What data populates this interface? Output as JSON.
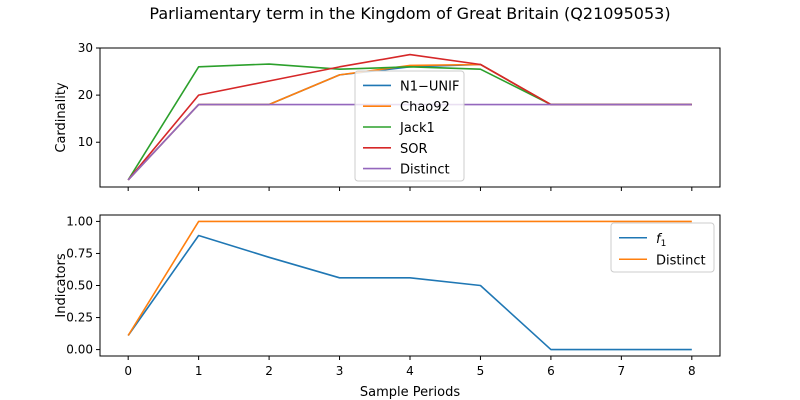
{
  "figure": {
    "title": "Parliamentary term in the Kingdom of Great Britain (Q21095053)"
  },
  "chart_data": [
    {
      "type": "line",
      "ylabel": "Cardinality",
      "xlabel": "",
      "xlim": [
        -0.4,
        8.4
      ],
      "ylim": [
        0.5,
        30
      ],
      "yticks": [
        10,
        20,
        30
      ],
      "xticks": [
        0,
        1,
        2,
        3,
        4,
        5,
        6,
        7,
        8
      ],
      "show_x_tick_labels": false,
      "legend_position": "center",
      "x": [
        0,
        1,
        2,
        3,
        4,
        5,
        6,
        7,
        8
      ],
      "series": [
        {
          "name": "N1−UNIF",
          "color": "#1f77b4",
          "values": [
            2,
            18,
            18,
            24.3,
            26,
            26.5,
            18,
            18,
            18
          ]
        },
        {
          "name": "Chao92",
          "color": "#ff7f0e",
          "values": [
            2,
            18,
            18,
            24.3,
            26.3,
            26.5,
            18,
            18,
            18
          ]
        },
        {
          "name": "Jack1",
          "color": "#2ca02c",
          "values": [
            2,
            26,
            26.6,
            25.5,
            26,
            25.5,
            18,
            18,
            18
          ]
        },
        {
          "name": "SOR",
          "color": "#d62728",
          "values": [
            2,
            20,
            23,
            26,
            28.6,
            26.5,
            18,
            18,
            18
          ]
        },
        {
          "name": "Distinct",
          "color": "#9467bd",
          "values": [
            2,
            18,
            18,
            18,
            18,
            18,
            18,
            18,
            18
          ]
        }
      ]
    },
    {
      "type": "line",
      "ylabel": "Indicators",
      "xlabel": "Sample Periods",
      "xlim": [
        -0.4,
        8.4
      ],
      "ylim": [
        -0.05,
        1.05
      ],
      "yticks": [
        0.0,
        0.25,
        0.5,
        0.75,
        1.0
      ],
      "ytick_labels": [
        "0.00",
        "0.25",
        "0.50",
        "0.75",
        "1.00"
      ],
      "xticks": [
        0,
        1,
        2,
        3,
        4,
        5,
        6,
        7,
        8
      ],
      "show_x_tick_labels": true,
      "legend_position": "upper right",
      "x": [
        0,
        1,
        2,
        3,
        4,
        5,
        6,
        7,
        8
      ],
      "series": [
        {
          "name": "f1",
          "name_main": "f",
          "name_sub": "1",
          "color": "#1f77b4",
          "values": [
            0.11,
            0.89,
            0.72,
            0.56,
            0.56,
            0.5,
            0,
            0,
            0
          ]
        },
        {
          "name": "Distinct",
          "color": "#ff7f0e",
          "values": [
            0.11,
            1,
            1,
            1,
            1,
            1,
            1,
            1,
            1
          ]
        }
      ]
    }
  ]
}
